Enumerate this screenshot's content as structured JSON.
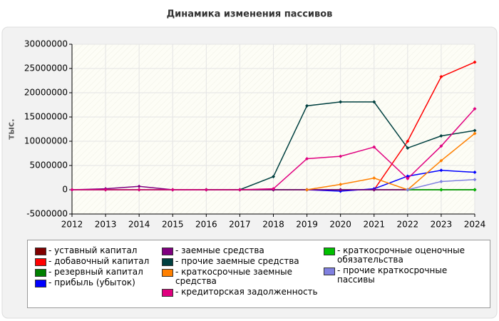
{
  "chart_data": {
    "type": "line",
    "title": "Динамика изменения пассивов",
    "y_label": "тыс.",
    "x": [
      2012,
      2013,
      2014,
      2015,
      2016,
      2017,
      2018,
      2019,
      2020,
      2021,
      2022,
      2023,
      2024
    ],
    "xlim": [
      2012,
      2024
    ],
    "xticks": [
      2012,
      2013,
      2014,
      2015,
      2016,
      2017,
      2018,
      2019,
      2020,
      2021,
      2022,
      2023,
      2024
    ],
    "ylim": [
      -5000000,
      30000000
    ],
    "yticks": [
      -5000000,
      0,
      5000000,
      10000000,
      15000000,
      20000000,
      25000000,
      30000000
    ],
    "grid": true,
    "legend": "bottom",
    "series": [
      {
        "name": "уставный капитал",
        "color": "#800000",
        "values": [
          0,
          0,
          0,
          0,
          0,
          0,
          0,
          0,
          0,
          0,
          0,
          0,
          0
        ]
      },
      {
        "name": "добавочный капитал",
        "color": "#ff0000",
        "values": [
          null,
          null,
          null,
          null,
          null,
          null,
          null,
          null,
          null,
          0,
          10000000,
          23300000,
          26300000
        ]
      },
      {
        "name": "резервный капитал",
        "color": "#008000",
        "values": [
          0,
          0,
          0,
          0,
          0,
          0,
          0,
          0,
          0,
          0,
          0,
          0,
          0
        ]
      },
      {
        "name": "прибыль (убыток)",
        "color": "#0000ff",
        "values": [
          null,
          null,
          null,
          null,
          null,
          null,
          null,
          0,
          -300000,
          200000,
          2800000,
          4000000,
          3600000
        ]
      },
      {
        "name": "заемные средства",
        "color": "#800080",
        "values": [
          0,
          200000,
          700000,
          0,
          0,
          0,
          0,
          0,
          0,
          0,
          0,
          0,
          0
        ]
      },
      {
        "name": "прочие заемные средства",
        "color": "#004040",
        "values": [
          null,
          null,
          null,
          null,
          0,
          0,
          2700000,
          17300000,
          18100000,
          18100000,
          8600000,
          11100000,
          12200000
        ]
      },
      {
        "name": "краткосрочные заемные средства",
        "color": "#ff8000",
        "values": [
          null,
          null,
          null,
          null,
          null,
          null,
          null,
          0,
          1100000,
          2400000,
          0,
          6000000,
          11600000
        ]
      },
      {
        "name": "кредиторская задолженность",
        "color": "#e0007f",
        "values": [
          0,
          0,
          0,
          0,
          0,
          0,
          200000,
          6400000,
          6900000,
          8800000,
          2300000,
          9000000,
          16700000
        ]
      },
      {
        "name": "краткосрочные оценочные обязательства",
        "color": "#00c000",
        "values": [
          null,
          null,
          null,
          null,
          null,
          null,
          null,
          null,
          null,
          null,
          0,
          0,
          0
        ]
      },
      {
        "name": "прочие краткосрочные пассивы",
        "color": "#8080e0",
        "values": [
          null,
          null,
          null,
          null,
          null,
          null,
          null,
          null,
          null,
          null,
          0,
          1700000,
          2100000
        ]
      }
    ]
  }
}
